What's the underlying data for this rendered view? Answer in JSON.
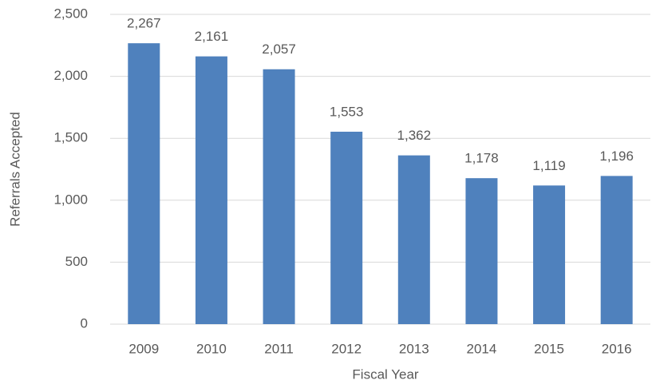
{
  "chart_data": {
    "type": "bar",
    "categories": [
      "2009",
      "2010",
      "2011",
      "2012",
      "2013",
      "2014",
      "2015",
      "2016"
    ],
    "values": [
      2267,
      2161,
      2057,
      1553,
      1362,
      1178,
      1119,
      1196
    ],
    "value_labels": [
      "2,267",
      "2,161",
      "2,057",
      "1,553",
      "1,362",
      "1,178",
      "1,119",
      "1,196"
    ],
    "color": "#4f81bd",
    "x_label": "Fiscal Year",
    "y_label": "Referrals Accepted",
    "ylim": [
      0,
      2500
    ],
    "yticks": [
      0,
      500,
      {
        "value": 1000,
        "label": "1,000"
      },
      {
        "value": 1500,
        "label": "1,500"
      },
      {
        "value": 2000,
        "label": "2,000"
      },
      {
        "value": 2500,
        "label": "2,500"
      }
    ],
    "grid": true
  }
}
